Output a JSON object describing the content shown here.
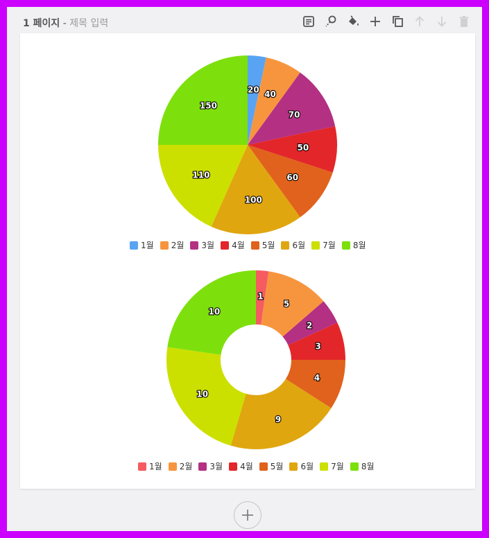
{
  "page": {
    "number_label": "1 페이지",
    "separator": "-",
    "title_placeholder": "제목 입력"
  },
  "toolbar": {
    "tools": [
      {
        "icon": "note-icon",
        "enabled": true
      },
      {
        "icon": "magic-wand-icon",
        "enabled": true
      },
      {
        "icon": "paint-bucket-icon",
        "enabled": true
      },
      {
        "icon": "plus-icon",
        "enabled": true
      },
      {
        "icon": "copy-icon",
        "enabled": true
      },
      {
        "icon": "arrow-up-icon",
        "enabled": false
      },
      {
        "icon": "arrow-down-icon",
        "enabled": false
      },
      {
        "icon": "trash-icon",
        "enabled": false
      }
    ]
  },
  "chart_data": [
    {
      "type": "pie",
      "categories": [
        "1월",
        "2월",
        "3월",
        "4월",
        "5월",
        "6월",
        "7월",
        "8월"
      ],
      "values": [
        20,
        40,
        70,
        50,
        60,
        100,
        110,
        150
      ],
      "colors": [
        "#58a4f2",
        "#f7953e",
        "#b43083",
        "#e32629",
        "#e0621c",
        "#e0a60f",
        "#cce000",
        "#7de00c"
      ],
      "legend_position": "bottom"
    },
    {
      "type": "donut",
      "categories": [
        "1월",
        "2월",
        "3월",
        "4월",
        "5월",
        "6월",
        "7월",
        "8월"
      ],
      "values": [
        1,
        5,
        2,
        3,
        4,
        9,
        10,
        10
      ],
      "colors": [
        "#f55b61",
        "#f7953e",
        "#b43083",
        "#e32629",
        "#e0621c",
        "#e0a60f",
        "#cce000",
        "#7de00c"
      ],
      "legend_position": "bottom"
    }
  ],
  "add_page": {
    "icon": "plus-circle-icon"
  }
}
